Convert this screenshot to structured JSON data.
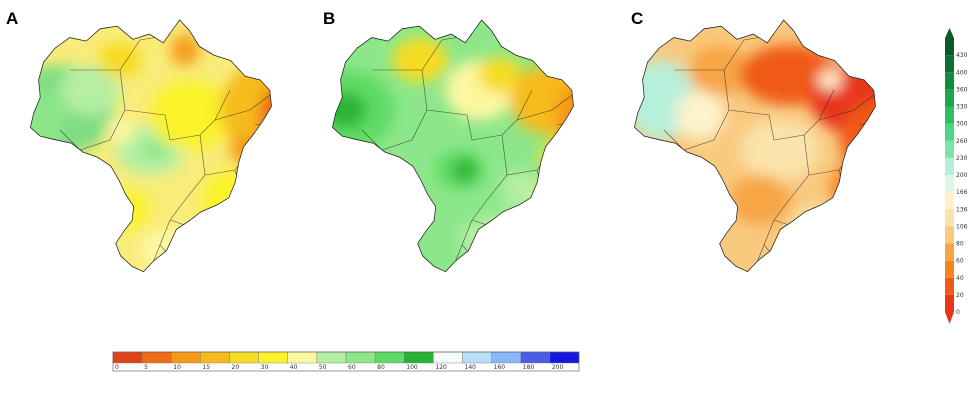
{
  "panels": [
    {
      "label": "A"
    },
    {
      "label": "B"
    },
    {
      "label": "C"
    }
  ],
  "chart_data": [
    {
      "type": "heatmap",
      "panel": "A",
      "title": "",
      "colorbar": "horizontal-bottom",
      "colorbar_ticks": [
        "0",
        "5",
        "10",
        "15",
        "20",
        "30",
        "40",
        "50",
        "60",
        "80",
        "100",
        "120",
        "140",
        "160",
        "180",
        "200"
      ],
      "colorbar_colors": [
        "#e2421a",
        "#ef6b16",
        "#f59a14",
        "#f6bb1a",
        "#f7dc24",
        "#fbf22a",
        "#fdf7a0",
        "#b5efa4",
        "#8de78a",
        "#5fdb65",
        "#29b334",
        "#f2fbf9",
        "#b9def8",
        "#8ab5f6",
        "#4a5de9",
        "#1618e0"
      ]
    },
    {
      "type": "heatmap",
      "panel": "B",
      "title": "",
      "colorbar": "horizontal-bottom",
      "colorbar_ticks": [
        "0",
        "5",
        "10",
        "15",
        "20",
        "30",
        "40",
        "50",
        "60",
        "80",
        "100",
        "120",
        "140",
        "160",
        "180",
        "200"
      ]
    },
    {
      "type": "heatmap",
      "panel": "C",
      "title": "",
      "colorbar": "vertical-right",
      "colorbar_ticks": [
        "0",
        "20",
        "40",
        "60",
        "80",
        "106",
        "136",
        "166",
        "200",
        "230",
        "260",
        "300",
        "330",
        "360",
        "400",
        "430"
      ],
      "colorbar_colors": [
        "#e9361a",
        "#f05a18",
        "#f5841c",
        "#f7a544",
        "#f9c97e",
        "#fbe3ab",
        "#fdf2cc",
        "#dff7e7",
        "#b6f0da",
        "#7fe3a8",
        "#4ed583",
        "#2fbf63",
        "#1fa64f",
        "#148a3f",
        "#0d6f33",
        "#0a5a2a"
      ]
    }
  ]
}
